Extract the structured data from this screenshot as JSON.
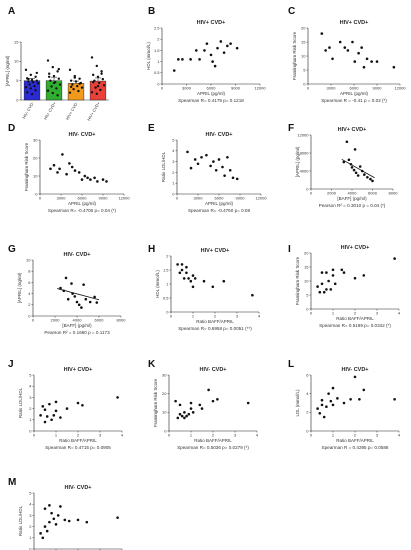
{
  "chart_data": [
    {
      "panel": "A",
      "type": "bar",
      "title": "",
      "ylabel": "[APRIL] (ng/ml)",
      "ylim": [
        0,
        15
      ],
      "yticks": [
        0,
        5,
        10,
        15
      ],
      "categories": [
        "HIV- CVD-",
        "HIV- CVD+",
        "HIV+ CVD-",
        "HIV+ CVD+"
      ],
      "values": [
        5.0,
        5.0,
        4.3,
        4.9
      ],
      "errors": [
        0.6,
        0.9,
        0.6,
        0.8
      ],
      "colors": [
        "#2b2bd6",
        "#2fae2f",
        "#f29a1c",
        "#e8413a"
      ],
      "points": [
        [
          7.8,
          6.5,
          6.0,
          5.6,
          5.2,
          5.0,
          4.8,
          4.6,
          4.3,
          4.0,
          3.6,
          3.3,
          3.0,
          2.5,
          2.0,
          1.5,
          7.0,
          5.4
        ],
        [
          10.2,
          8.5,
          7.4,
          6.8,
          6.2,
          5.5,
          5.0,
          4.6,
          4.0,
          3.5,
          3.0,
          2.4,
          1.8,
          1.2,
          6.0,
          4.4,
          8.0
        ],
        [
          7.8,
          6.2,
          5.5,
          5.0,
          4.8,
          4.4,
          4.0,
          3.6,
          3.2,
          2.8,
          2.3,
          1.9,
          5.8,
          4.2,
          3.4
        ],
        [
          11.0,
          8.8,
          7.4,
          6.5,
          6.0,
          5.4,
          5.0,
          4.4,
          3.8,
          3.2,
          2.6,
          2.0,
          1.6,
          6.8,
          4.6,
          3.6
        ]
      ]
    },
    {
      "panel": "B",
      "type": "scatter",
      "title": "HIV+ CVD+",
      "xlabel": "APRIL (pg/ml)",
      "ylabel": "HDL (mmol/L)",
      "xlim": [
        0,
        12000
      ],
      "xticks": [
        0,
        3000,
        6000,
        9000,
        12000
      ],
      "ylim": [
        0,
        2.5
      ],
      "yticks": [
        0,
        0.5,
        1.0,
        1.5,
        2.0,
        2.5
      ],
      "points": [
        [
          1500,
          0.6
        ],
        [
          2000,
          1.1
        ],
        [
          2500,
          1.1
        ],
        [
          3500,
          1.1
        ],
        [
          4200,
          1.5
        ],
        [
          4600,
          1.1
        ],
        [
          5200,
          1.5
        ],
        [
          5500,
          1.8
        ],
        [
          6000,
          1.3
        ],
        [
          6200,
          1.0
        ],
        [
          6500,
          0.8
        ],
        [
          6800,
          1.6
        ],
        [
          7200,
          1.9
        ],
        [
          7600,
          1.4
        ],
        [
          8000,
          1.7
        ],
        [
          8400,
          1.8
        ],
        [
          9200,
          1.6
        ]
      ],
      "stat_text": "Spearman R= 0.4179   p= 0.1218"
    },
    {
      "panel": "C",
      "type": "scatter",
      "title": "HIV+ CVD+",
      "xlabel": "APRIL (pg/ml)",
      "ylabel": "Framingham Risk Score",
      "xlim": [
        0,
        12000
      ],
      "xticks": [
        0,
        3000,
        6000,
        9000,
        12000
      ],
      "ylim": [
        0,
        20
      ],
      "yticks": [
        0,
        5,
        10,
        15,
        20
      ],
      "points": [
        [
          1800,
          18
        ],
        [
          2300,
          12
        ],
        [
          2800,
          13
        ],
        [
          3200,
          9
        ],
        [
          4200,
          15
        ],
        [
          4800,
          13
        ],
        [
          5200,
          12
        ],
        [
          5800,
          15
        ],
        [
          6100,
          8
        ],
        [
          6600,
          11
        ],
        [
          7000,
          13
        ],
        [
          7300,
          6
        ],
        [
          7700,
          9
        ],
        [
          8300,
          8
        ],
        [
          9000,
          8
        ],
        [
          11200,
          6
        ]
      ],
      "stat_text": "Spearman R = -0.41   p = 0.03 (*)"
    },
    {
      "panel": "D",
      "type": "scatter",
      "title": "HIV- CVD+",
      "xlabel": "APRIL (pg/ml)",
      "ylabel": "Framingham Risk Score",
      "xlim": [
        0,
        12000
      ],
      "xticks": [
        0,
        3000,
        6000,
        9000,
        12000
      ],
      "ylim": [
        0,
        30
      ],
      "yticks": [
        0,
        10,
        20,
        30
      ],
      "points": [
        [
          1500,
          14
        ],
        [
          2000,
          16
        ],
        [
          2500,
          12
        ],
        [
          2800,
          14
        ],
        [
          3200,
          22
        ],
        [
          3800,
          11
        ],
        [
          4200,
          17
        ],
        [
          4600,
          15
        ],
        [
          5000,
          13
        ],
        [
          5600,
          12
        ],
        [
          6000,
          8
        ],
        [
          6400,
          10
        ],
        [
          6800,
          9
        ],
        [
          7200,
          8
        ],
        [
          7800,
          9
        ],
        [
          8200,
          7
        ],
        [
          9000,
          8
        ],
        [
          9500,
          7
        ]
      ],
      "stat_text": "Spearman R= -0.4706   p= 0.04 (*)"
    },
    {
      "panel": "E",
      "type": "scatter",
      "title": "HIV- CVD+",
      "xlabel": "APRIL (pg/ml)",
      "ylabel": "Ratio LDL/HDL",
      "xlim": [
        0,
        12000
      ],
      "xticks": [
        0,
        3000,
        6000,
        9000,
        12000
      ],
      "ylim": [
        0,
        5
      ],
      "yticks": [
        0,
        1,
        2,
        3,
        4,
        5
      ],
      "points": [
        [
          1500,
          3.9
        ],
        [
          2000,
          2.4
        ],
        [
          2600,
          3.2
        ],
        [
          3000,
          2.8
        ],
        [
          3500,
          3.4
        ],
        [
          4200,
          3.6
        ],
        [
          4800,
          2.6
        ],
        [
          5200,
          3.0
        ],
        [
          5600,
          2.2
        ],
        [
          6000,
          3.2
        ],
        [
          6500,
          2.5
        ],
        [
          6800,
          1.7
        ],
        [
          7200,
          3.4
        ],
        [
          7600,
          2.2
        ],
        [
          8000,
          1.5
        ],
        [
          8600,
          1.4
        ]
      ],
      "stat_text": "Spearman R= -0.4760   p= 0.08"
    },
    {
      "panel": "F",
      "type": "scatter",
      "title": "HIV+ CVD+",
      "xlabel": "[BAFF] (pg/ml)",
      "ylabel": "[APRIL] (pg/ml)",
      "xlim": [
        0,
        8000
      ],
      "xticks": [
        0,
        2000,
        4000,
        6000,
        8000
      ],
      "ylim": [
        0,
        12000
      ],
      "yticks": [
        0,
        4000,
        8000,
        12000
      ],
      "points": [
        [
          3200,
          6000
        ],
        [
          3500,
          10500
        ],
        [
          3700,
          6500
        ],
        [
          3900,
          5500
        ],
        [
          4000,
          4800
        ],
        [
          4200,
          4200
        ],
        [
          4400,
          3600
        ],
        [
          4600,
          3000
        ],
        [
          4800,
          5000
        ],
        [
          5000,
          4000
        ],
        [
          5200,
          3200
        ],
        [
          5500,
          2600
        ],
        [
          5800,
          2200
        ],
        [
          6000,
          1800
        ],
        [
          4300,
          8800
        ]
      ],
      "fit_line": [
        [
          3000,
          6600
        ],
        [
          6200,
          2500
        ]
      ],
      "stat_text": "Pearson R² = 0.3010   p = 0.04 (*)"
    },
    {
      "panel": "G",
      "type": "scatter",
      "title": "HIV- CVD+",
      "xlabel": "[BAFF] (pg/ml)",
      "ylabel": "[APRIL] (ng/ml)",
      "xlim": [
        0,
        8000
      ],
      "xticks": [
        0,
        2000,
        4000,
        6000,
        8000
      ],
      "ylim": [
        0,
        10
      ],
      "yticks": [
        0,
        2,
        4,
        6,
        8,
        10
      ],
      "points": [
        [
          2500,
          5.0
        ],
        [
          2800,
          4.5
        ],
        [
          3000,
          6.8
        ],
        [
          3200,
          3.0
        ],
        [
          3500,
          5.8
        ],
        [
          3600,
          4.0
        ],
        [
          3800,
          3.5
        ],
        [
          4000,
          2.5
        ],
        [
          4200,
          2.0
        ],
        [
          4400,
          1.5
        ],
        [
          4600,
          5.6
        ],
        [
          4800,
          3.0
        ],
        [
          5200,
          2.5
        ],
        [
          5600,
          3.4
        ],
        [
          5800,
          2.4
        ]
      ],
      "fit_line": [
        [
          2200,
          4.9
        ],
        [
          6000,
          2.9
        ]
      ],
      "stat_text": "Pearson R² = 0.1660   p = 0.1173"
    },
    {
      "panel": "H",
      "type": "scatter",
      "title": "HIV+ CVD+",
      "xlabel": "Ratio BAFF/APRIL",
      "ylabel": "HDL (mmol/L)",
      "xlim": [
        0,
        4
      ],
      "xticks": [
        0,
        1,
        2,
        3,
        4
      ],
      "ylim": [
        0,
        2.0
      ],
      "yticks": [
        0,
        0.5,
        1.0,
        1.5,
        2.0
      ],
      "points": [
        [
          0.3,
          1.7
        ],
        [
          0.4,
          1.4
        ],
        [
          0.5,
          1.5
        ],
        [
          0.5,
          1.7
        ],
        [
          0.6,
          1.2
        ],
        [
          0.7,
          1.4
        ],
        [
          0.7,
          1.6
        ],
        [
          0.8,
          1.2
        ],
        [
          0.9,
          1.1
        ],
        [
          1.0,
          1.3
        ],
        [
          1.0,
          0.9
        ],
        [
          1.1,
          1.2
        ],
        [
          1.5,
          1.1
        ],
        [
          1.9,
          0.9
        ],
        [
          2.4,
          1.1
        ],
        [
          3.7,
          0.6
        ]
      ],
      "stat_text": "Spearman R= 0.6958   p= 0.0051 (**)"
    },
    {
      "panel": "I",
      "type": "scatter",
      "title": "HIV+ CVD+",
      "xlabel": "Ratio BAFF/APRIL",
      "ylabel": "Framingham Risk Score",
      "xlim": [
        0,
        4
      ],
      "xticks": [
        0,
        1,
        2,
        3,
        4
      ],
      "ylim": [
        0,
        20
      ],
      "yticks": [
        0,
        5,
        10,
        15,
        20
      ],
      "points": [
        [
          0.3,
          8
        ],
        [
          0.4,
          6
        ],
        [
          0.5,
          9
        ],
        [
          0.5,
          13
        ],
        [
          0.6,
          6
        ],
        [
          0.7,
          7
        ],
        [
          0.7,
          13
        ],
        [
          0.8,
          10
        ],
        [
          0.9,
          7
        ],
        [
          1.0,
          12
        ],
        [
          1.0,
          14
        ],
        [
          1.1,
          9
        ],
        [
          1.4,
          14
        ],
        [
          1.5,
          13
        ],
        [
          2.0,
          11
        ],
        [
          2.4,
          12
        ],
        [
          3.8,
          18
        ]
      ],
      "stat_text": "Spearman R= 0.5199   p= 0.0342 (*)"
    },
    {
      "panel": "J",
      "type": "scatter",
      "title": "HIV+ CVD+",
      "xlabel": "Ratio BAFF/APRIL",
      "ylabel": "Ratio LDL/HDL",
      "xlim": [
        0,
        4
      ],
      "xticks": [
        0,
        1,
        2,
        3,
        4
      ],
      "ylim": [
        0,
        5
      ],
      "yticks": [
        0,
        1,
        2,
        3,
        4,
        5
      ],
      "points": [
        [
          0.3,
          1.4
        ],
        [
          0.4,
          2.2
        ],
        [
          0.5,
          0.8
        ],
        [
          0.5,
          1.9
        ],
        [
          0.6,
          1.3
        ],
        [
          0.7,
          2.4
        ],
        [
          0.8,
          1.0
        ],
        [
          0.9,
          1.4
        ],
        [
          1.0,
          1.8
        ],
        [
          1.0,
          2.6
        ],
        [
          1.2,
          1.2
        ],
        [
          1.5,
          2.0
        ],
        [
          2.0,
          2.5
        ],
        [
          2.2,
          2.3
        ],
        [
          3.8,
          3.0
        ]
      ],
      "stat_text": "Spearman R= 0.4715   p= 0.0905"
    },
    {
      "panel": "K",
      "type": "scatter",
      "title": "HIV- CVD+",
      "xlabel": "Ratio BAFF/APRIL",
      "ylabel": "Framingham Risk Score",
      "xlim": [
        0,
        4
      ],
      "xticks": [
        0,
        1,
        2,
        3,
        4
      ],
      "ylim": [
        0,
        30
      ],
      "yticks": [
        0,
        10,
        20,
        30
      ],
      "points": [
        [
          0.3,
          16
        ],
        [
          0.4,
          7
        ],
        [
          0.5,
          9
        ],
        [
          0.5,
          14
        ],
        [
          0.6,
          8
        ],
        [
          0.7,
          7
        ],
        [
          0.7,
          10
        ],
        [
          0.8,
          8
        ],
        [
          0.9,
          9
        ],
        [
          1.0,
          12
        ],
        [
          1.0,
          15
        ],
        [
          1.1,
          10
        ],
        [
          1.4,
          14
        ],
        [
          1.5,
          12
        ],
        [
          1.8,
          22
        ],
        [
          2.0,
          16
        ],
        [
          2.2,
          17
        ],
        [
          3.6,
          15
        ]
      ],
      "stat_text": "Spearman R= 0.5036   p= 0.0279 (*)"
    },
    {
      "panel": "L",
      "type": "scatter",
      "title": "HIV- CVD+",
      "xlabel": "Ratio BAFF/APRIL",
      "ylabel": "LDL (mmol/L)",
      "xlim": [
        0,
        4
      ],
      "xticks": [
        0,
        1,
        2,
        3,
        4
      ],
      "ylim": [
        0,
        6
      ],
      "yticks": [
        0,
        2,
        4,
        6
      ],
      "points": [
        [
          0.3,
          2.4
        ],
        [
          0.4,
          1.9
        ],
        [
          0.5,
          2.8
        ],
        [
          0.5,
          3.3
        ],
        [
          0.6,
          1.5
        ],
        [
          0.7,
          2.6
        ],
        [
          0.8,
          4.0
        ],
        [
          0.9,
          3.2
        ],
        [
          1.0,
          4.6
        ],
        [
          1.0,
          2.8
        ],
        [
          1.2,
          3.5
        ],
        [
          1.5,
          3.0
        ],
        [
          1.8,
          3.4
        ],
        [
          2.0,
          5.8
        ],
        [
          2.2,
          3.4
        ],
        [
          2.4,
          4.4
        ],
        [
          3.8,
          3.4
        ]
      ],
      "stat_text": "Spearman R = 0.4295   p= 0.0588"
    },
    {
      "panel": "M",
      "type": "scatter",
      "title": "HIV- CVD+",
      "xlabel": "Ratio BAFF/APRIL",
      "ylabel": "Ratio LDL/HDL",
      "xlim": [
        0,
        4
      ],
      "xticks": [
        0,
        1,
        2,
        3,
        4
      ],
      "ylim": [
        0,
        5
      ],
      "yticks": [
        0,
        1,
        2,
        3,
        4,
        5
      ],
      "points": [
        [
          0.3,
          1.4
        ],
        [
          0.4,
          1.0
        ],
        [
          0.5,
          2.0
        ],
        [
          0.5,
          3.6
        ],
        [
          0.6,
          1.6
        ],
        [
          0.7,
          3.9
        ],
        [
          0.7,
          2.4
        ],
        [
          0.8,
          3.2
        ],
        [
          0.9,
          2.7
        ],
        [
          1.0,
          2.2
        ],
        [
          1.1,
          3.0
        ],
        [
          1.2,
          3.8
        ],
        [
          1.4,
          2.6
        ],
        [
          1.6,
          2.5
        ],
        [
          2.0,
          2.6
        ],
        [
          2.4,
          2.4
        ],
        [
          3.8,
          2.8
        ]
      ],
      "stat_text": "Spearman R = 0.5246   p= 0.0175 (*)"
    }
  ]
}
